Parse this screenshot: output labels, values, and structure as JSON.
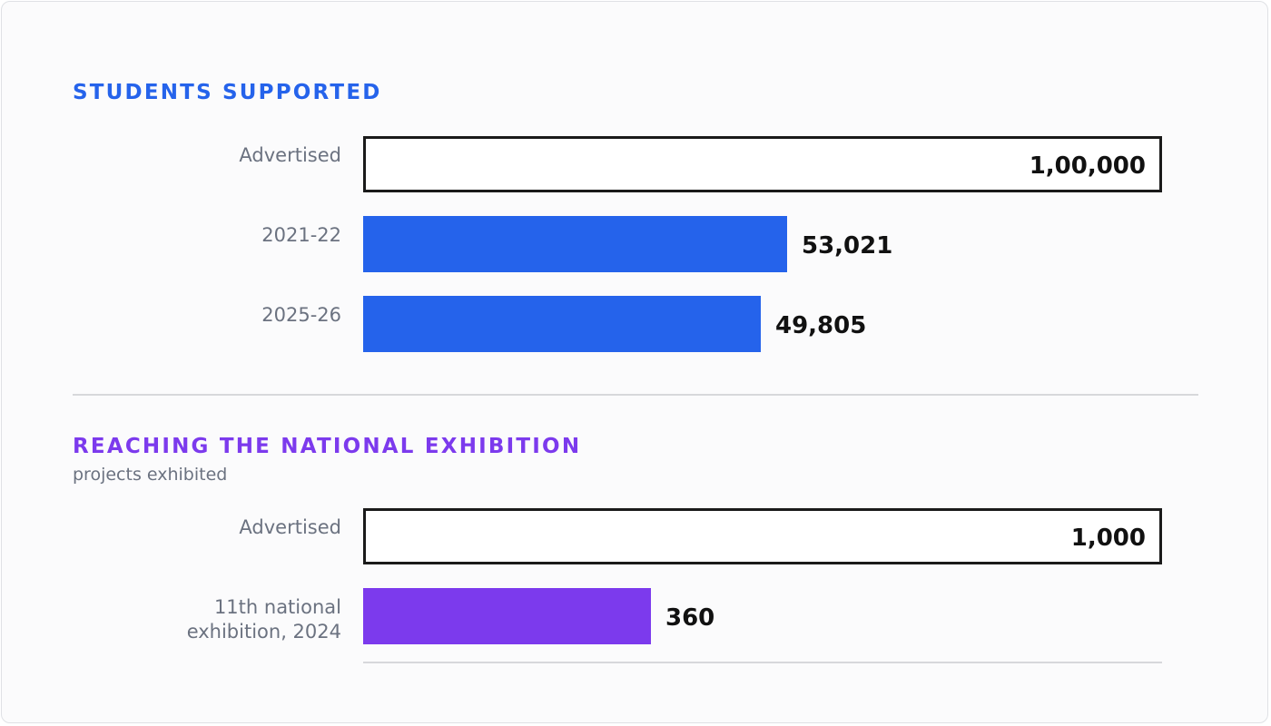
{
  "chart_data": [
    {
      "type": "bar",
      "orientation": "horizontal",
      "title": "STUDENTS SUPPORTED",
      "subtitle": "",
      "categories": [
        "Advertised",
        "2021-22",
        "2025-26"
      ],
      "values": [
        100000,
        53021,
        49805
      ],
      "value_labels": [
        "1,00,000",
        "53,021",
        "49,805"
      ],
      "xlim": [
        0,
        100000
      ],
      "accent": "#2563eb",
      "target_style": "outlined"
    },
    {
      "type": "bar",
      "orientation": "horizontal",
      "title": "REACHING THE NATIONAL EXHIBITION",
      "subtitle": "projects exhibited",
      "categories": [
        "Advertised",
        "11th national exhibition, 2024"
      ],
      "category_lines": [
        [
          "Advertised"
        ],
        [
          "11th national",
          "exhibition, 2024"
        ]
      ],
      "values": [
        1000,
        360
      ],
      "value_labels": [
        "1,000",
        "360"
      ],
      "xlim": [
        0,
        1000
      ],
      "accent": "#7c3aed",
      "target_style": "outlined"
    }
  ]
}
